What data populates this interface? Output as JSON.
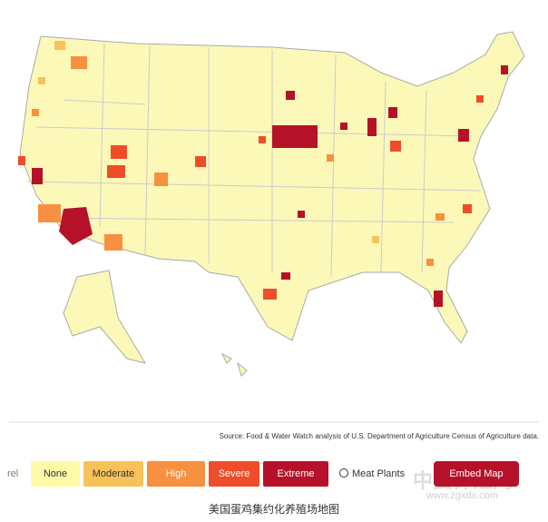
{
  "map": {
    "source": "Source: Food & Water Watch analysis of U.S. Department of Agriculture Census of Agriculture data."
  },
  "legend": {
    "label": "rel",
    "items": [
      "None",
      "Moderate",
      "High",
      "Severe",
      "Extreme"
    ],
    "meat_plants": "Meat Plants"
  },
  "embed_button": "Embed Map",
  "watermark": {
    "name": "中国养殖网",
    "url": "www.zgxdx.com"
  },
  "caption": "美国蛋鸡集约化养殖场地图"
}
